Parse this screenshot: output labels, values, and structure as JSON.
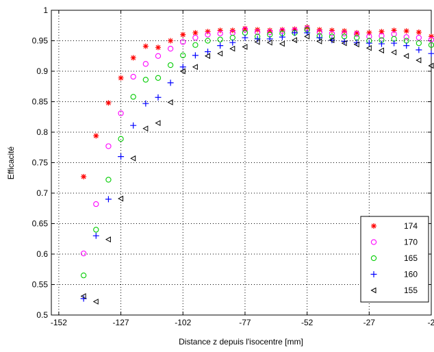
{
  "chart_data": {
    "type": "scatter",
    "title": "",
    "xlabel": "Distance z depuis l'isocentre [mm]",
    "ylabel": "Efficacité",
    "xlim": [
      -155,
      -2
    ],
    "ylim": [
      0.5,
      1
    ],
    "xticks": [
      -152,
      -127,
      -102,
      -77,
      -52,
      -27,
      -2
    ],
    "xtick_labels": [
      "-152",
      "-127",
      "-102",
      "-77",
      "-52",
      "-27",
      "-2"
    ],
    "yticks": [
      0.5,
      0.55,
      0.6,
      0.65,
      0.7,
      0.75,
      0.8,
      0.85,
      0.9,
      0.95,
      1
    ],
    "ytick_labels": [
      "0.5",
      "0.55",
      "0.6",
      "0.65",
      "0.7",
      "0.75",
      "0.8",
      "0.85",
      "0.9",
      "0.95",
      "1"
    ],
    "grid": true,
    "legend_position": "bottom-right",
    "series": [
      {
        "name": "174",
        "marker": "asterisk",
        "color": "#ff0000",
        "x": [
          -142,
          -137,
          -132,
          -127,
          -122,
          -117,
          -112,
          -107,
          -102,
          -97,
          -92,
          -87,
          -82,
          -77,
          -72,
          -67,
          -62,
          -57,
          -52,
          -47,
          -42,
          -37,
          -32,
          -27,
          -22,
          -17,
          -12,
          -7,
          -2
        ],
        "y": [
          0.727,
          0.794,
          0.848,
          0.889,
          0.922,
          0.941,
          0.939,
          0.95,
          0.96,
          0.963,
          0.965,
          0.967,
          0.967,
          0.97,
          0.968,
          0.967,
          0.968,
          0.969,
          0.972,
          0.968,
          0.967,
          0.966,
          0.963,
          0.963,
          0.965,
          0.967,
          0.966,
          0.964,
          0.957
        ]
      },
      {
        "name": "170",
        "marker": "circle",
        "color": "#ff00ff",
        "x": [
          -142,
          -137,
          -132,
          -127,
          -122,
          -117,
          -112,
          -107,
          -102,
          -97,
          -92,
          -87,
          -82,
          -77,
          -72,
          -67,
          -62,
          -57,
          -52,
          -47,
          -42,
          -37,
          -32,
          -27,
          -22,
          -17,
          -12,
          -7,
          -2
        ],
        "y": [
          0.601,
          0.682,
          0.777,
          0.831,
          0.891,
          0.912,
          0.925,
          0.937,
          0.948,
          0.955,
          0.96,
          0.962,
          0.963,
          0.968,
          0.964,
          0.964,
          0.966,
          0.967,
          0.97,
          0.964,
          0.962,
          0.962,
          0.961,
          0.957,
          0.958,
          0.961,
          0.956,
          0.955,
          0.952
        ]
      },
      {
        "name": "165",
        "marker": "circle",
        "color": "#00cc00",
        "x": [
          -142,
          -137,
          -132,
          -127,
          -122,
          -117,
          -112,
          -107,
          -102,
          -97,
          -92,
          -87,
          -82,
          -77,
          -72,
          -67,
          -62,
          -57,
          -52,
          -47,
          -42,
          -37,
          -32,
          -27,
          -22,
          -17,
          -12,
          -7,
          -2
        ],
        "y": [
          0.565,
          0.64,
          0.722,
          0.789,
          0.858,
          0.886,
          0.889,
          0.91,
          0.926,
          0.943,
          0.95,
          0.952,
          0.955,
          0.963,
          0.957,
          0.96,
          0.962,
          0.963,
          0.968,
          0.958,
          0.957,
          0.957,
          0.955,
          0.95,
          0.951,
          0.953,
          0.95,
          0.946,
          0.943
        ]
      },
      {
        "name": "160",
        "marker": "plus",
        "color": "#0000ff",
        "x": [
          -142,
          -137,
          -132,
          -127,
          -122,
          -117,
          -112,
          -107,
          -102,
          -97,
          -92,
          -87,
          -82,
          -77,
          -72,
          -67,
          -62,
          -57,
          -52,
          -47,
          -42,
          -37,
          -32,
          -27,
          -22,
          -17,
          -12,
          -7,
          -2
        ],
        "y": [
          0.527,
          0.63,
          0.69,
          0.76,
          0.811,
          0.847,
          0.857,
          0.881,
          0.907,
          0.926,
          0.932,
          0.942,
          0.947,
          0.955,
          0.953,
          0.953,
          0.956,
          0.963,
          0.963,
          0.955,
          0.951,
          0.949,
          0.947,
          0.946,
          0.945,
          0.946,
          0.942,
          0.935,
          0.929
        ]
      },
      {
        "name": "155",
        "marker": "triangle-left",
        "color": "#000000",
        "x": [
          -142,
          -137,
          -132,
          -127,
          -122,
          -117,
          -112,
          -107,
          -102,
          -97,
          -92,
          -87,
          -82,
          -77,
          -72,
          -67,
          -62,
          -57,
          -52,
          -47,
          -42,
          -37,
          -32,
          -27,
          -22,
          -17,
          -12,
          -7,
          -2
        ],
        "y": [
          0.531,
          0.522,
          0.624,
          0.691,
          0.757,
          0.806,
          0.815,
          0.849,
          0.9,
          0.907,
          0.925,
          0.929,
          0.937,
          0.94,
          0.948,
          0.947,
          0.945,
          0.951,
          0.957,
          0.949,
          0.951,
          0.946,
          0.944,
          0.938,
          0.934,
          0.931,
          0.925,
          0.918,
          0.909
        ]
      }
    ]
  }
}
